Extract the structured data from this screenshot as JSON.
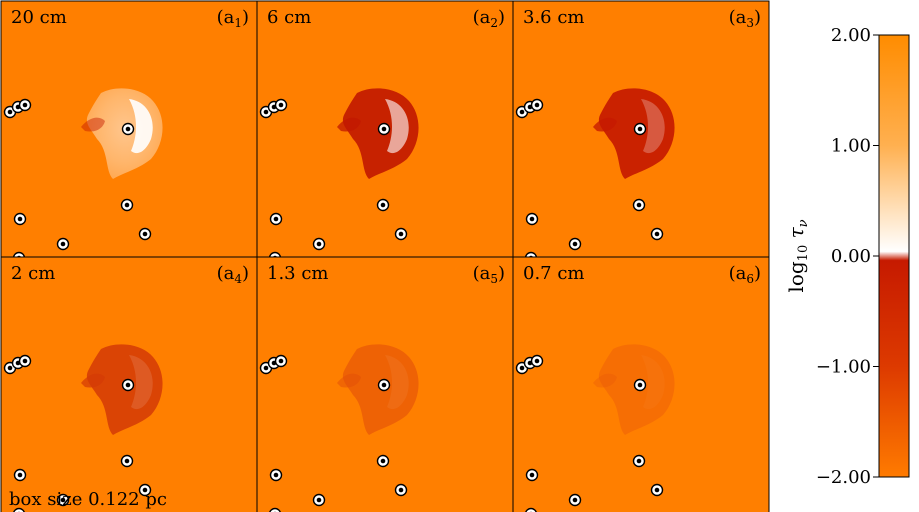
{
  "panels": [
    {
      "wavelength": "20 cm",
      "tag_base": "a",
      "tag_sub": "1"
    },
    {
      "wavelength": "6 cm",
      "tag_base": "a",
      "tag_sub": "2"
    },
    {
      "wavelength": "3.6 cm",
      "tag_base": "a",
      "tag_sub": "3"
    },
    {
      "wavelength": "2 cm",
      "tag_base": "a",
      "tag_sub": "4"
    },
    {
      "wavelength": "1.3 cm",
      "tag_base": "a",
      "tag_sub": "5"
    },
    {
      "wavelength": "0.7 cm",
      "tag_base": "a",
      "tag_sub": "6"
    }
  ],
  "scale_note": "box size 0.122 pc",
  "colorbar": {
    "label_prefix": "log",
    "label_sub": "10",
    "label_symbol": "τ",
    "label_symbol_sub": "ν",
    "ticks": [
      "2.00",
      "1.00",
      "0.00",
      "−1.00",
      "−2.00"
    ],
    "tick_values": [
      2,
      1,
      0,
      -1,
      -2
    ],
    "range": [
      -2,
      2
    ],
    "colors": {
      "high": "#ff8c00",
      "mid_high": "#ffd9a8",
      "zero": "#ffffff",
      "mid_low": "#c61a00",
      "low": "#ff7b00"
    }
  },
  "background_color": "#ff7f00"
}
